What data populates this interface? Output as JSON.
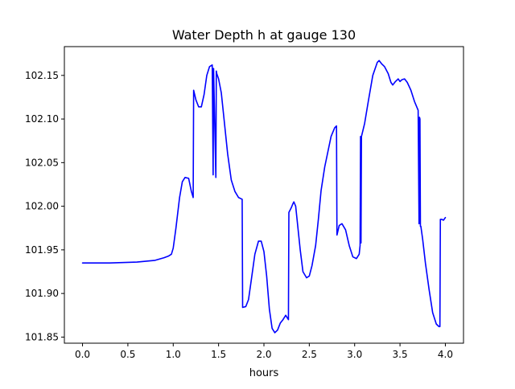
{
  "chart_data": {
    "type": "line",
    "title": "Water Depth h at gauge 130",
    "xlabel": "hours",
    "ylabel": "",
    "xlim": [
      -0.2,
      4.2
    ],
    "ylim": [
      101.843,
      102.183
    ],
    "xticks": [
      0.0,
      0.5,
      1.0,
      1.5,
      2.0,
      2.5,
      3.0,
      3.5,
      4.0
    ],
    "xtick_labels": [
      "0.0",
      "0.5",
      "1.0",
      "1.5",
      "2.0",
      "2.5",
      "3.0",
      "3.5",
      "4.0"
    ],
    "yticks": [
      101.85,
      101.9,
      101.95,
      102.0,
      102.05,
      102.1,
      102.15
    ],
    "ytick_labels": [
      "101.85",
      "101.90",
      "101.95",
      "102.00",
      "102.05",
      "102.10",
      "102.15"
    ],
    "grid": false,
    "series": [
      {
        "color": "#0000ff",
        "x": [
          0.0,
          0.3,
          0.6,
          0.8,
          0.9,
          0.95,
          0.98,
          1.0,
          1.03,
          1.07,
          1.1,
          1.13,
          1.17,
          1.2,
          1.22,
          1.225,
          1.25,
          1.28,
          1.31,
          1.34,
          1.37,
          1.4,
          1.43,
          1.44,
          1.445,
          1.47,
          1.475,
          1.48,
          1.5,
          1.53,
          1.56,
          1.6,
          1.64,
          1.68,
          1.72,
          1.76,
          1.765,
          1.8,
          1.83,
          1.86,
          1.9,
          1.94,
          1.97,
          2.0,
          2.03,
          2.06,
          2.09,
          2.12,
          2.15,
          2.18,
          2.21,
          2.24,
          2.27,
          2.275,
          2.3,
          2.32,
          2.33,
          2.35,
          2.37,
          2.4,
          2.43,
          2.47,
          2.5,
          2.53,
          2.57,
          2.6,
          2.63,
          2.67,
          2.7,
          2.74,
          2.78,
          2.8,
          2.805,
          2.83,
          2.86,
          2.9,
          2.94,
          2.98,
          3.02,
          3.05,
          3.06,
          3.065,
          3.07,
          3.075,
          3.08,
          3.11,
          3.15,
          3.2,
          3.25,
          3.27,
          3.3,
          3.33,
          3.37,
          3.4,
          3.42,
          3.45,
          3.48,
          3.5,
          3.52,
          3.55,
          3.58,
          3.62,
          3.66,
          3.7,
          3.71,
          3.715,
          3.72,
          3.725,
          3.73,
          3.75,
          3.78,
          3.82,
          3.86,
          3.9,
          3.93,
          3.94,
          3.945,
          3.96,
          3.98,
          4.0
        ],
        "y": [
          101.935,
          101.935,
          101.936,
          101.938,
          101.941,
          101.943,
          101.945,
          101.952,
          101.975,
          102.01,
          102.028,
          102.033,
          102.032,
          102.017,
          102.01,
          102.133,
          102.122,
          102.114,
          102.114,
          102.128,
          102.15,
          102.16,
          102.162,
          102.036,
          102.158,
          102.033,
          102.155,
          102.152,
          102.146,
          102.13,
          102.1,
          102.06,
          102.03,
          102.017,
          102.01,
          102.008,
          101.884,
          101.885,
          101.893,
          101.915,
          101.945,
          101.96,
          101.96,
          101.948,
          101.92,
          101.882,
          101.86,
          101.855,
          101.858,
          101.866,
          101.87,
          101.875,
          101.87,
          101.993,
          101.998,
          102.003,
          102.005,
          102.0,
          101.98,
          101.95,
          101.925,
          101.918,
          101.92,
          101.932,
          101.955,
          101.985,
          102.018,
          102.045,
          102.06,
          102.08,
          102.09,
          102.092,
          101.967,
          101.978,
          101.98,
          101.973,
          101.955,
          101.942,
          101.94,
          101.945,
          101.955,
          102.08,
          101.958,
          102.08,
          102.082,
          102.095,
          102.12,
          102.15,
          102.165,
          102.167,
          102.163,
          102.16,
          102.152,
          102.142,
          102.139,
          102.143,
          102.146,
          102.143,
          102.145,
          102.146,
          102.142,
          102.133,
          102.12,
          102.11,
          101.98,
          102.102,
          102.1,
          101.977,
          101.977,
          101.962,
          101.935,
          101.905,
          101.878,
          101.865,
          101.862,
          101.862,
          101.985,
          101.985,
          101.984,
          101.987
        ]
      }
    ]
  }
}
